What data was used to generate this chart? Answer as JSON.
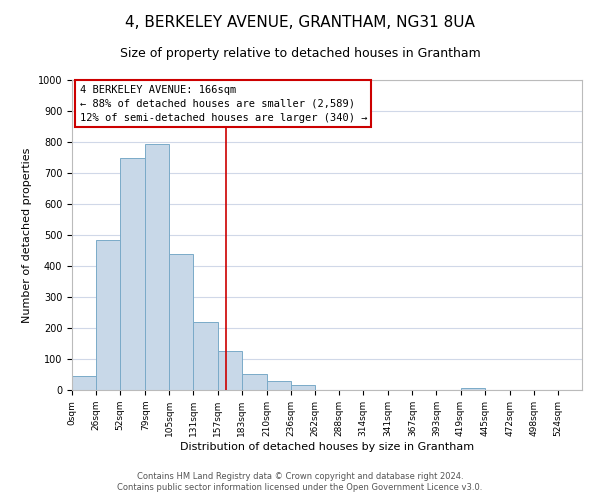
{
  "title": "4, BERKELEY AVENUE, GRANTHAM, NG31 8UA",
  "subtitle": "Size of property relative to detached houses in Grantham",
  "xlabel": "Distribution of detached houses by size in Grantham",
  "ylabel": "Number of detached properties",
  "bar_left_edges": [
    0,
    26,
    52,
    79,
    105,
    131,
    157,
    183,
    210,
    236,
    262,
    288,
    314,
    341,
    367,
    393,
    419,
    445,
    472,
    498
  ],
  "bar_heights": [
    44,
    485,
    750,
    795,
    438,
    220,
    125,
    52,
    28,
    15,
    0,
    0,
    0,
    0,
    0,
    0,
    8,
    0,
    0,
    0
  ],
  "bar_color": "#c8d8e8",
  "bar_edgecolor": "#7aaac8",
  "tick_labels": [
    "0sqm",
    "26sqm",
    "52sqm",
    "79sqm",
    "105sqm",
    "131sqm",
    "157sqm",
    "183sqm",
    "210sqm",
    "236sqm",
    "262sqm",
    "288sqm",
    "314sqm",
    "341sqm",
    "367sqm",
    "393sqm",
    "419sqm",
    "445sqm",
    "472sqm",
    "498sqm",
    "524sqm"
  ],
  "property_line_x": 166,
  "property_line_color": "#cc0000",
  "ylim": [
    0,
    1000
  ],
  "yticks": [
    0,
    100,
    200,
    300,
    400,
    500,
    600,
    700,
    800,
    900,
    1000
  ],
  "annotation_title": "4 BERKELEY AVENUE: 166sqm",
  "annotation_line1": "← 88% of detached houses are smaller (2,589)",
  "annotation_line2": "12% of semi-detached houses are larger (340) →",
  "footer_line1": "Contains HM Land Registry data © Crown copyright and database right 2024.",
  "footer_line2": "Contains public sector information licensed under the Open Government Licence v3.0.",
  "background_color": "#ffffff",
  "grid_color": "#d0d8e8",
  "title_fontsize": 11,
  "subtitle_fontsize": 9,
  "axis_label_fontsize": 8,
  "tick_fontsize": 6.5,
  "annotation_fontsize": 7.5,
  "footer_fontsize": 6
}
